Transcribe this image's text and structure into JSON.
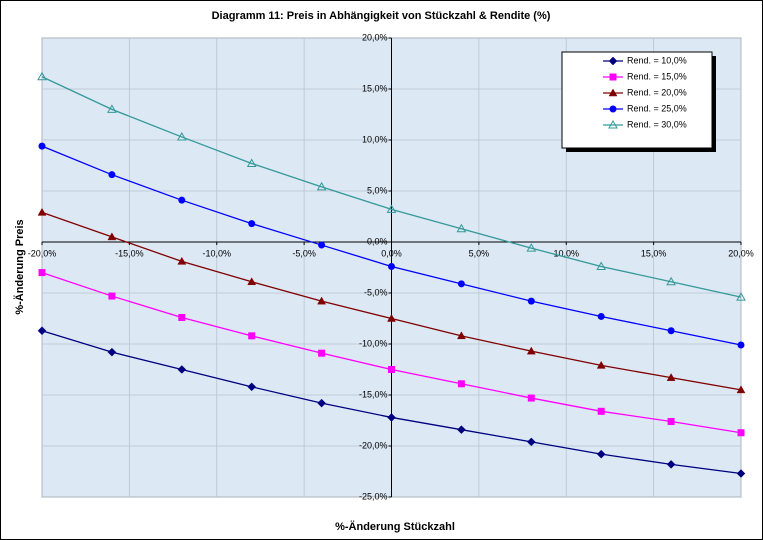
{
  "chart_data": {
    "type": "line",
    "title": "Diagramm 11: Preis in Abhängigkeit von Stückzahl & Rendite (%)",
    "xlabel": "%-Änderung Stückzahl",
    "ylabel": "%-Änderung Preis",
    "x": [
      -20,
      -16,
      -12,
      -8,
      -4,
      0,
      4,
      8,
      12,
      16,
      20
    ],
    "xlim": [
      -20,
      20
    ],
    "ylim": [
      -25,
      20
    ],
    "xticks": [
      {
        "value": -20,
        "label": "-20,0%"
      },
      {
        "value": -15,
        "label": "-15,0%"
      },
      {
        "value": -10,
        "label": "-10,0%"
      },
      {
        "value": -5,
        "label": "-5,0%"
      },
      {
        "value": 0,
        "label": "0,0%"
      },
      {
        "value": 5,
        "label": "5,0%"
      },
      {
        "value": 10,
        "label": "10,0%"
      },
      {
        "value": 15,
        "label": "15,0%"
      },
      {
        "value": 20,
        "label": "20,0%"
      }
    ],
    "yticks": [
      {
        "value": -25,
        "label": "-25,0%"
      },
      {
        "value": -20,
        "label": "-20,0%"
      },
      {
        "value": -15,
        "label": "-15,0%"
      },
      {
        "value": -10,
        "label": "-10,0%"
      },
      {
        "value": -5,
        "label": "-5,0%"
      },
      {
        "value": 0,
        "label": "0,0%"
      },
      {
        "value": 5,
        "label": "5,0%"
      },
      {
        "value": 10,
        "label": "10,0%"
      },
      {
        "value": 15,
        "label": "15,0%"
      },
      {
        "value": 20,
        "label": "20,0%"
      }
    ],
    "grid": true,
    "legend": "upper right",
    "series": [
      {
        "name": "Rend. = 10,0%",
        "color": "#000080",
        "marker": "diamond",
        "values": [
          -8.7,
          -10.8,
          -12.5,
          -14.2,
          -15.8,
          -17.2,
          -18.4,
          -19.6,
          -20.8,
          -21.8,
          -22.7
        ]
      },
      {
        "name": "Rend. = 15,0%",
        "color": "#ff00ff",
        "marker": "square",
        "values": [
          -3.0,
          -5.3,
          -7.4,
          -9.2,
          -10.9,
          -12.5,
          -13.9,
          -15.3,
          -16.6,
          -17.6,
          -18.7
        ]
      },
      {
        "name": "Rend. = 20,0%",
        "color": "#800000",
        "marker": "triangle",
        "values": [
          2.9,
          0.5,
          -1.9,
          -3.9,
          -5.8,
          -7.5,
          -9.2,
          -10.7,
          -12.1,
          -13.3,
          -14.5
        ]
      },
      {
        "name": "Rend. = 25,0%",
        "color": "#0000ff",
        "marker": "circle",
        "values": [
          9.4,
          6.6,
          4.1,
          1.8,
          -0.3,
          -2.4,
          -4.1,
          -5.8,
          -7.3,
          -8.7,
          -10.1
        ]
      },
      {
        "name": "Rend. = 30,0%",
        "color": "#339999",
        "marker": "open-triangle",
        "values": [
          16.2,
          13.0,
          10.3,
          7.7,
          5.4,
          3.2,
          1.3,
          -0.6,
          -2.4,
          -3.9,
          -5.4
        ]
      }
    ]
  }
}
